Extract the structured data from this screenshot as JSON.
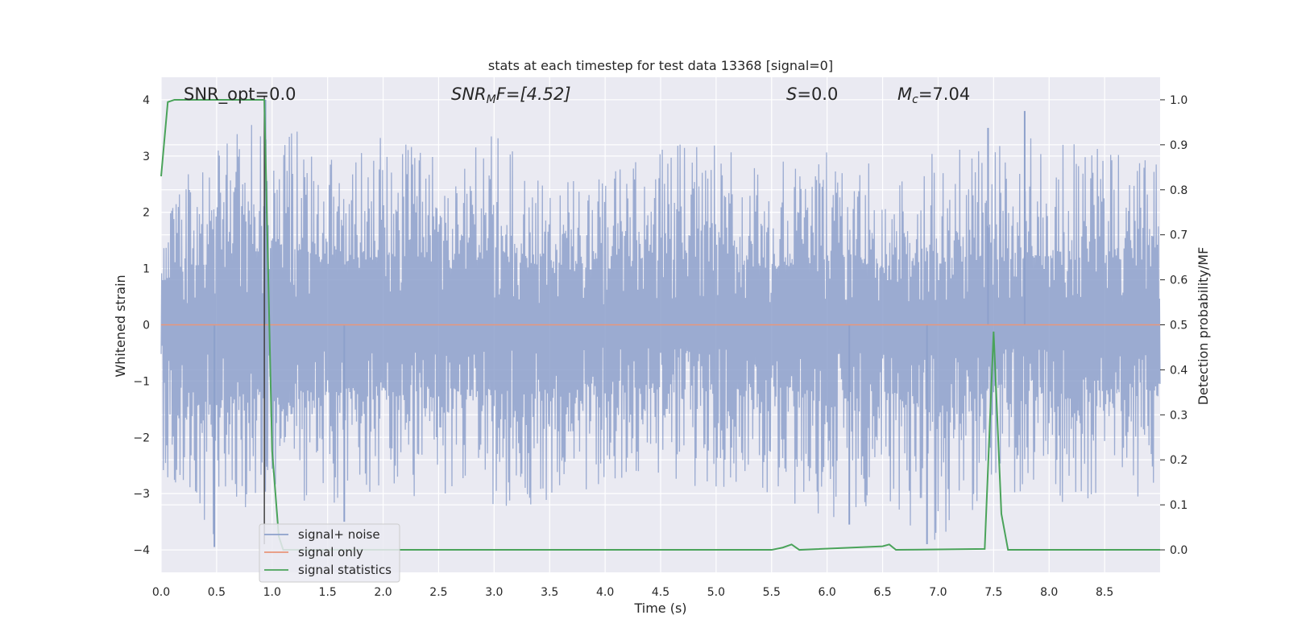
{
  "chart_data": {
    "type": "line",
    "title": "stats at each timestep for test data 13368 [signal=0]",
    "xlabel": "Time (s)",
    "ylabel": "Whitened strain",
    "y2label": "Detection probability/MF",
    "xlim": [
      0.0,
      9.0
    ],
    "ylim": [
      -4.4,
      4.4
    ],
    "y2lim": [
      -0.05,
      1.05
    ],
    "x_ticks": [
      "0.0",
      "0.5",
      "1.0",
      "1.5",
      "2.0",
      "2.5",
      "3.0",
      "3.5",
      "4.0",
      "4.5",
      "5.0",
      "5.5",
      "6.0",
      "6.5",
      "7.0",
      "7.5",
      "8.0",
      "8.5"
    ],
    "y_ticks": [
      "−4",
      "−3",
      "−2",
      "−1",
      "0",
      "1",
      "2",
      "3",
      "4"
    ],
    "y2_ticks": [
      "0.0",
      "0.1",
      "0.2",
      "0.3",
      "0.4",
      "0.5",
      "0.6",
      "0.7",
      "0.8",
      "0.9",
      "1.0"
    ],
    "grid": true,
    "legend_position": "lower-left",
    "annotations": {
      "snr_opt": "SNR_opt=0.0",
      "snr_mf_main": "SNR",
      "snr_mf_sub": "M",
      "snr_mf_tail": "F=[4.52]",
      "s_main": "S",
      "s_tail": "=0.0",
      "mc_main": "M",
      "mc_sub": "c",
      "mc_tail": "=7.04"
    },
    "vline_x": 0.93,
    "series": [
      {
        "name": "signal+ noise",
        "color": "#8da0cb",
        "axis": "left",
        "style": "noise",
        "envelope": {
          "x": [
            0.0,
            0.5,
            1.0,
            1.5,
            2.0,
            2.5,
            3.0,
            3.5,
            4.0,
            4.5,
            5.0,
            5.5,
            6.0,
            6.5,
            7.0,
            7.5,
            8.0,
            8.5,
            9.0
          ],
          "upper": [
            2.2,
            3.2,
            3.9,
            2.9,
            3.4,
            3.0,
            3.4,
            2.6,
            2.6,
            3.3,
            3.2,
            2.8,
            3.3,
            2.9,
            3.1,
            3.3,
            3.4,
            3.1,
            3.3
          ],
          "lower": [
            -2.6,
            -3.9,
            -2.9,
            -3.4,
            -2.9,
            -3.2,
            -3.3,
            -3.2,
            -2.8,
            -2.9,
            -3.0,
            -3.0,
            -3.5,
            -3.3,
            -3.9,
            -3.0,
            -3.2,
            -3.3,
            -3.0
          ]
        },
        "peaks": [
          {
            "x": 0.48,
            "y": -3.95
          },
          {
            "x": 0.94,
            "y": 4.0
          },
          {
            "x": 1.65,
            "y": -3.5
          },
          {
            "x": 6.2,
            "y": -3.55
          },
          {
            "x": 6.9,
            "y": -3.9
          },
          {
            "x": 7.45,
            "y": 3.5
          },
          {
            "x": 7.78,
            "y": 3.8
          }
        ]
      },
      {
        "name": "signal only",
        "color": "#e8967a",
        "axis": "left",
        "x": [
          0.0,
          9.0
        ],
        "y": [
          0.0,
          0.0
        ]
      },
      {
        "name": "signal statistics",
        "color": "#4aa35a",
        "axis": "right",
        "x": [
          0.0,
          0.06,
          0.12,
          0.5,
          0.93,
          1.0,
          1.06,
          1.1,
          5.5,
          5.6,
          5.68,
          5.75,
          6.5,
          6.56,
          6.62,
          7.42,
          7.5,
          7.57,
          7.63,
          9.0
        ],
        "y": [
          0.83,
          0.995,
          1.0,
          1.0,
          1.0,
          0.22,
          0.03,
          0.0,
          0.0,
          0.005,
          0.012,
          0.0,
          0.008,
          0.012,
          0.0,
          0.002,
          0.485,
          0.08,
          0.0,
          0.0
        ]
      }
    ]
  }
}
